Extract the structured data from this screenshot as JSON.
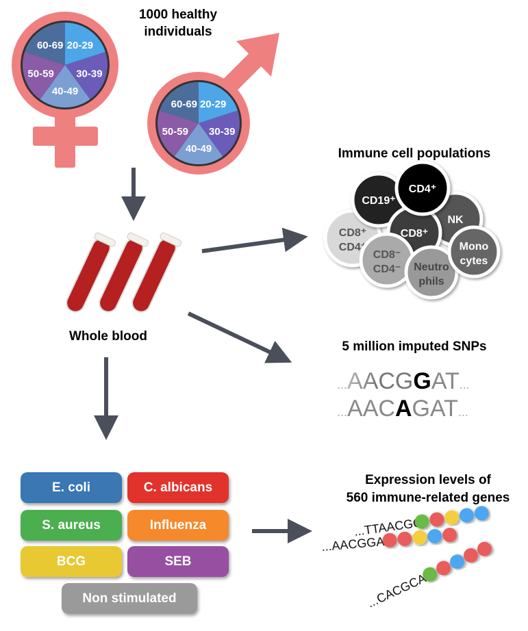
{
  "title": "1000 healthy individuals",
  "title_line1": "1000 healthy",
  "title_line2": "individuals",
  "age_groups": [
    {
      "label": "20-29",
      "color": "#4da6e8"
    },
    {
      "label": "30-39",
      "color": "#6a5cb8"
    },
    {
      "label": "40-49",
      "color": "#7b9fd3"
    },
    {
      "label": "50-59",
      "color": "#8a5ba6"
    },
    {
      "label": "60-69",
      "color": "#4c6d9c"
    }
  ],
  "symbol_color": "#ef8080",
  "blood_label": "Whole blood",
  "cells": {
    "title": "Immune cell populations",
    "items": [
      {
        "l1": "CD8⁺",
        "l2": "CD4⁺",
        "color": "#d8d8d8",
        "text": "#555"
      },
      {
        "l1": "CD19⁺",
        "l2": "",
        "color": "#222",
        "text": "#fff"
      },
      {
        "l1": "NK",
        "l2": "",
        "color": "#555",
        "text": "#fff"
      },
      {
        "l1": "CD8⁺",
        "l2": "",
        "color": "#3c3c3c",
        "text": "#fff"
      },
      {
        "l1": "CD4⁺",
        "l2": "",
        "color": "#000",
        "text": "#fff"
      },
      {
        "l1": "CD8⁻",
        "l2": "CD4⁻",
        "color": "#aaa",
        "text": "#555"
      },
      {
        "l1": "Neutro",
        "l2": "phils",
        "color": "#999",
        "text": "#444"
      },
      {
        "l1": "Mono",
        "l2": "cytes",
        "color": "#666",
        "text": "#fff"
      }
    ]
  },
  "snps": {
    "title": "5 million imputed SNPs",
    "seq1": {
      "pre": "AACG",
      "alt": "G",
      "post": "AT"
    },
    "seq2": {
      "pre": "AAC",
      "alt": "A",
      "post": "GAT"
    },
    "dots": "..."
  },
  "stimuli": [
    {
      "label": "E. coli",
      "color": "#3a77b3"
    },
    {
      "label": "C. albicans",
      "color": "#e2322c"
    },
    {
      "label": "S. aureus",
      "color": "#4bae4f"
    },
    {
      "label": "Influenza",
      "color": "#f5892c"
    },
    {
      "label": "BCG",
      "color": "#e8c933"
    },
    {
      "label": "SEB",
      "color": "#974fa2"
    },
    {
      "label": "Non stimulated",
      "color": "#9a9a9a"
    }
  ],
  "expression": {
    "title1": "Expression levels of",
    "title2": "560 immune-related genes",
    "seqs": [
      {
        "text": "...TTAACGG",
        "beads": [
          "#6bbb44",
          "#e85c5c",
          "#f3cf3c",
          "#4da6f0",
          "#4da6f0"
        ]
      },
      {
        "text": "...AACGGAT",
        "beads": [
          "#e85c5c",
          "#e85c5c",
          "#f3cf3c",
          "#4da6f0",
          "#e85c5c"
        ]
      },
      {
        "text": "...CACGCAA",
        "beads": [
          "#6bbb44",
          "#e85c5c",
          "#4da6f0",
          "#e85c5c",
          "#e85c5c"
        ]
      }
    ]
  }
}
